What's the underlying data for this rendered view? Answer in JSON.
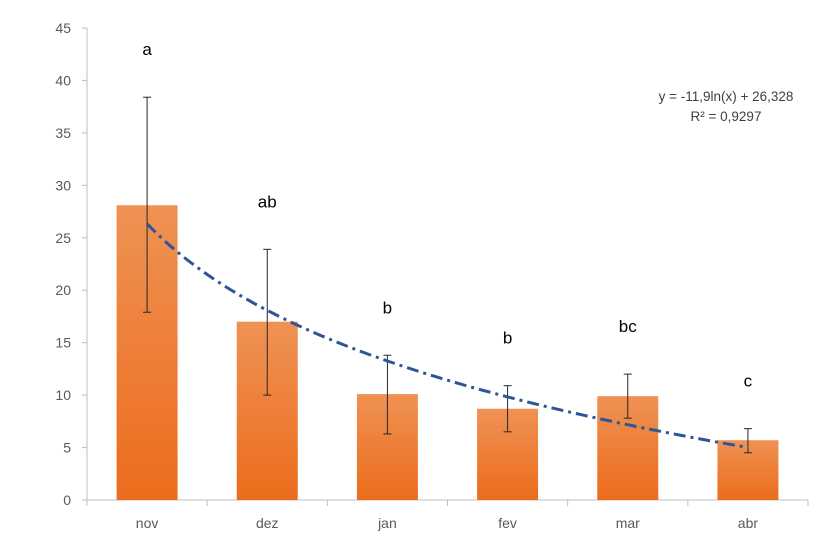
{
  "chart_data": {
    "type": "bar",
    "title": "",
    "xlabel": "",
    "ylabel": "",
    "categories": [
      "nov",
      "dez",
      "jan",
      "fev",
      "mar",
      "abr"
    ],
    "values": [
      28.1,
      17.0,
      10.1,
      8.7,
      9.9,
      5.7
    ],
    "error_low": [
      17.9,
      10.0,
      6.3,
      6.5,
      7.8,
      4.5
    ],
    "error_high": [
      38.4,
      23.9,
      13.8,
      10.9,
      12.0,
      6.8
    ],
    "significance_letters": [
      "a",
      "ab",
      "b",
      "b",
      "bc",
      "c"
    ],
    "ylim": [
      0,
      45
    ],
    "yticks": [
      0,
      5,
      10,
      15,
      20,
      25,
      30,
      35,
      40,
      45
    ],
    "gridlines": false,
    "legend": "none",
    "trendline": {
      "type": "logarithmic",
      "a": -11.9,
      "b": 26.328,
      "equation": "y = -11,9ln(x) + 26,328",
      "r2": "R² = 0,9297",
      "color": "#2e5597"
    },
    "colors": {
      "bar_top": "#ef9254",
      "bar_bottom": "#ec6c1c",
      "axis": "#bfbfbf",
      "error_bar": "#262626"
    }
  }
}
